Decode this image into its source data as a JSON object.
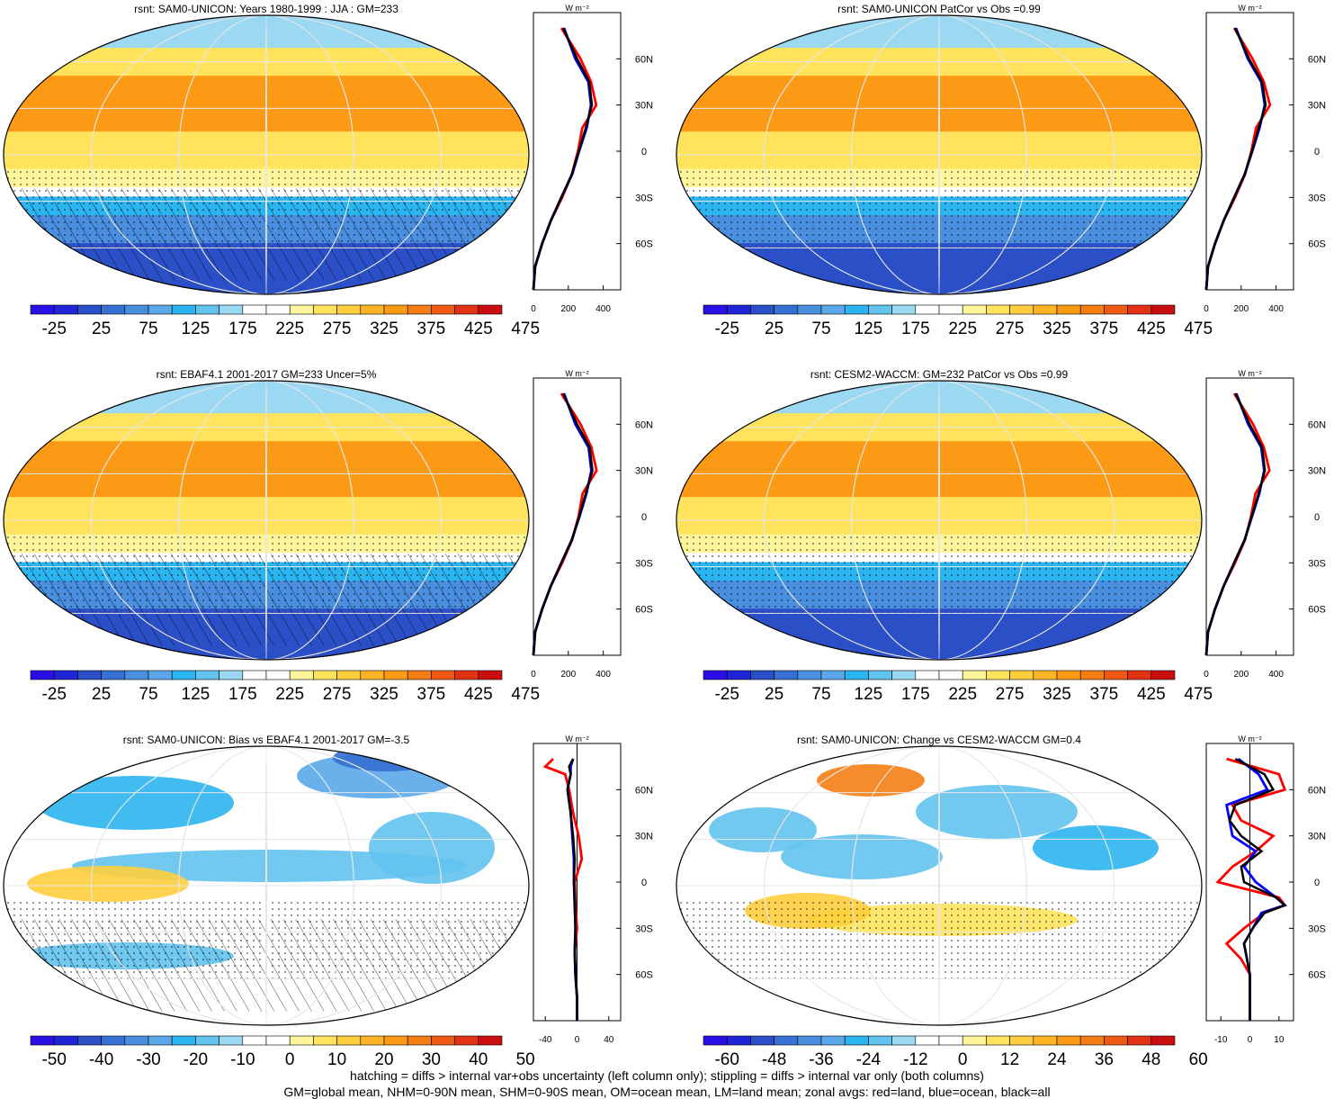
{
  "palette_abs": [
    "#2a0ee6",
    "#1f24d6",
    "#2a4fc6",
    "#3670d2",
    "#4a8ee0",
    "#5aa8ea",
    "#2bb5f0",
    "#62c3ee",
    "#9bd8f2",
    "#ffffff",
    "#ffffff",
    "#fff59a",
    "#ffe35c",
    "#ffce3c",
    "#ffb426",
    "#fc9a16",
    "#f47e14",
    "#ee5a14",
    "#e23214",
    "#c80e0e"
  ],
  "palette_diff": [
    "#2a0ee6",
    "#1f24d6",
    "#2a4fc6",
    "#3670d2",
    "#4a8ee0",
    "#5aa8ea",
    "#2bb5f0",
    "#62c3ee",
    "#9bd8f2",
    "#ffffff",
    "#ffffff",
    "#fff59a",
    "#ffe35c",
    "#ffce3c",
    "#ffb426",
    "#fc9a16",
    "#f47e14",
    "#ee5a14",
    "#e23214",
    "#c80e0e"
  ],
  "line_colors": {
    "land": "#ff0000",
    "ocean": "#0000ff",
    "all": "#000000"
  },
  "lat_labels": [
    "60N",
    "30N",
    "0",
    "30S",
    "60S"
  ],
  "panels": [
    {
      "title": "rsnt: SAM0-UNICON: Years 1980-1999 : JJA : GM=233",
      "kind": "abs",
      "cb_ticks": [
        "-25",
        "25",
        "75",
        "125",
        "175",
        "225",
        "275",
        "325",
        "375",
        "425",
        "475"
      ],
      "zx_ticks": [
        "0",
        "200",
        "400"
      ],
      "zx_range": [
        0,
        500
      ],
      "units": "W m⁻²"
    },
    {
      "title": "rsnt: SAM0-UNICON PatCor vs Obs =0.99",
      "kind": "abs",
      "cb_ticks": [
        "-25",
        "25",
        "75",
        "125",
        "175",
        "225",
        "275",
        "325",
        "375",
        "425",
        "475"
      ],
      "zx_ticks": [
        "0",
        "200",
        "400"
      ],
      "zx_range": [
        0,
        500
      ],
      "units": "W m⁻²"
    },
    {
      "title": "rsnt: EBAF4.1 2001-2017 GM=233 Uncer=5%",
      "kind": "abs",
      "cb_ticks": [
        "-25",
        "25",
        "75",
        "125",
        "175",
        "225",
        "275",
        "325",
        "375",
        "425",
        "475"
      ],
      "zx_ticks": [
        "0",
        "200",
        "400"
      ],
      "zx_range": [
        0,
        500
      ],
      "units": "W m⁻²"
    },
    {
      "title": "rsnt: CESM2-WACCM: GM=232 PatCor vs Obs =0.99",
      "kind": "abs",
      "cb_ticks": [
        "-25",
        "25",
        "75",
        "125",
        "175",
        "225",
        "275",
        "325",
        "375",
        "425",
        "475"
      ],
      "zx_ticks": [
        "0",
        "200",
        "400"
      ],
      "zx_range": [
        0,
        500
      ],
      "units": "W m⁻²"
    },
    {
      "title": "rsnt: SAM0-UNICON: Bias vs EBAF4.1 2001-2017 GM=-3.5",
      "kind": "bias",
      "cb_ticks": [
        "-50",
        "-40",
        "-30",
        "-20",
        "-10",
        "0",
        "10",
        "20",
        "30",
        "40",
        "50"
      ],
      "zx_ticks": [
        "-40",
        "0",
        "40"
      ],
      "zx_range": [
        -55,
        55
      ],
      "units": "W m⁻²"
    },
    {
      "title": "rsnt: SAM0-UNICON: Change vs CESM2-WACCM GM=0.4",
      "kind": "change",
      "cb_ticks": [
        "-60",
        "-48",
        "-36",
        "-24",
        "-12",
        "0",
        "12",
        "24",
        "36",
        "48",
        "60"
      ],
      "zx_ticks": [
        "-10",
        "0",
        "10"
      ],
      "zx_range": [
        -15,
        15
      ],
      "units": "W m⁻²"
    }
  ],
  "footer": {
    "line1": "hatching = diffs > internal var+obs uncertainty (left column only); stippling = diffs > internal var only (both columns)",
    "line2": "GM=global mean, NHM=0-90N mean, SHM=0-90S mean, OM=ocean mean, LM=land mean; zonal avgs: red=land, blue=ocean, black=all"
  },
  "chart_data": [
    {
      "type": "heatmap",
      "title": "rsnt: SAM0-UNICON: Years 1980-1999 : JJA : GM=233",
      "colorbar": [
        -25,
        25,
        75,
        125,
        175,
        225,
        275,
        325,
        375,
        425,
        475
      ],
      "zonal_mean": {
        "lat": [
          80,
          60,
          45,
          30,
          15,
          0,
          -15,
          -30,
          -45,
          -60,
          -75,
          -90
        ],
        "all": [
          170,
          250,
          320,
          335,
          300,
          260,
          220,
          160,
          100,
          50,
          10,
          0
        ],
        "land": [
          160,
          270,
          330,
          360,
          280,
          255,
          220,
          165,
          100,
          50,
          10,
          0
        ],
        "ocean": [
          175,
          240,
          315,
          330,
          305,
          262,
          222,
          160,
          100,
          50,
          10,
          0
        ]
      }
    },
    {
      "type": "heatmap",
      "title": "rsnt: SAM0-UNICON PatCor vs Obs =0.99",
      "colorbar": [
        -25,
        25,
        75,
        125,
        175,
        225,
        275,
        325,
        375,
        425,
        475
      ],
      "zonal_mean": {
        "lat": [
          80,
          60,
          45,
          30,
          15,
          0,
          -15,
          -30,
          -45,
          -60,
          -75,
          -90
        ],
        "all": [
          165,
          245,
          320,
          340,
          300,
          262,
          220,
          160,
          100,
          50,
          10,
          0
        ],
        "land": [
          160,
          265,
          330,
          365,
          285,
          258,
          222,
          165,
          100,
          50,
          10,
          0
        ],
        "ocean": [
          170,
          238,
          315,
          335,
          305,
          264,
          220,
          160,
          100,
          50,
          10,
          0
        ]
      }
    },
    {
      "type": "heatmap",
      "title": "rsnt: EBAF4.1 2001-2017 GM=233 Uncer=5%",
      "colorbar": [
        -25,
        25,
        75,
        125,
        175,
        225,
        275,
        325,
        375,
        425,
        475
      ],
      "zonal_mean": {
        "lat": [
          80,
          60,
          45,
          30,
          15,
          0,
          -15,
          -30,
          -45,
          -60,
          -75,
          -90
        ],
        "all": [
          170,
          250,
          322,
          338,
          300,
          262,
          220,
          160,
          100,
          50,
          10,
          0
        ],
        "land": [
          160,
          270,
          332,
          362,
          282,
          258,
          222,
          165,
          100,
          50,
          10,
          0
        ],
        "ocean": [
          175,
          240,
          316,
          332,
          304,
          264,
          220,
          160,
          100,
          50,
          10,
          0
        ]
      }
    },
    {
      "type": "heatmap",
      "title": "rsnt: CESM2-WACCM: GM=232 PatCor vs Obs =0.99",
      "colorbar": [
        -25,
        25,
        75,
        125,
        175,
        225,
        275,
        325,
        375,
        425,
        475
      ],
      "zonal_mean": {
        "lat": [
          80,
          60,
          45,
          30,
          15,
          0,
          -15,
          -30,
          -45,
          -60,
          -75,
          -90
        ],
        "all": [
          168,
          248,
          320,
          336,
          300,
          260,
          220,
          160,
          100,
          50,
          10,
          0
        ],
        "land": [
          160,
          268,
          330,
          362,
          282,
          256,
          222,
          165,
          100,
          50,
          10,
          0
        ],
        "ocean": [
          172,
          240,
          315,
          332,
          304,
          262,
          220,
          160,
          100,
          50,
          10,
          0
        ]
      }
    },
    {
      "type": "heatmap",
      "title": "rsnt: SAM0-UNICON: Bias vs EBAF4.1 2001-2017 GM=-3.5",
      "colorbar": [
        -50,
        -40,
        -30,
        -20,
        -10,
        0,
        10,
        20,
        30,
        40,
        50
      ],
      "zonal_mean": {
        "lat": [
          80,
          75,
          70,
          60,
          45,
          30,
          15,
          0,
          -15,
          -30,
          -45,
          -60,
          -75,
          -90
        ],
        "all": [
          -5,
          -10,
          -8,
          -12,
          -8,
          -5,
          -3,
          -4,
          -3,
          -2,
          -3,
          -2,
          0,
          0
        ],
        "land": [
          -30,
          -40,
          -15,
          -10,
          -5,
          2,
          6,
          -3,
          -2,
          0,
          -3,
          -2,
          0,
          0
        ],
        "ocean": [
          -5,
          -8,
          -8,
          -12,
          -8,
          -6,
          -4,
          -4,
          -3,
          -2,
          -3,
          -2,
          0,
          0
        ]
      }
    },
    {
      "type": "heatmap",
      "title": "rsnt: SAM0-UNICON: Change vs CESM2-WACCM GM=0.4",
      "colorbar": [
        -60,
        -48,
        -36,
        -24,
        -12,
        0,
        12,
        24,
        36,
        48,
        60
      ],
      "zonal_mean": {
        "lat": [
          80,
          70,
          60,
          50,
          40,
          30,
          20,
          10,
          0,
          -10,
          -15,
          -20,
          -30,
          -40,
          -50,
          -60,
          -75,
          -90
        ],
        "all": [
          -5,
          5,
          8,
          -5,
          -7,
          -3,
          4,
          -3,
          -2,
          9,
          12,
          5,
          1,
          -2,
          -1,
          0,
          0,
          0
        ],
        "land": [
          -8,
          10,
          12,
          -6,
          -3,
          8,
          2,
          -6,
          -11,
          10,
          12,
          5,
          -2,
          -8,
          -3,
          0,
          0,
          0
        ],
        "ocean": [
          -4,
          3,
          6,
          -8,
          -7,
          -6,
          2,
          -2,
          2,
          9,
          12,
          4,
          1,
          -2,
          -1,
          0,
          0,
          0
        ]
      }
    }
  ]
}
